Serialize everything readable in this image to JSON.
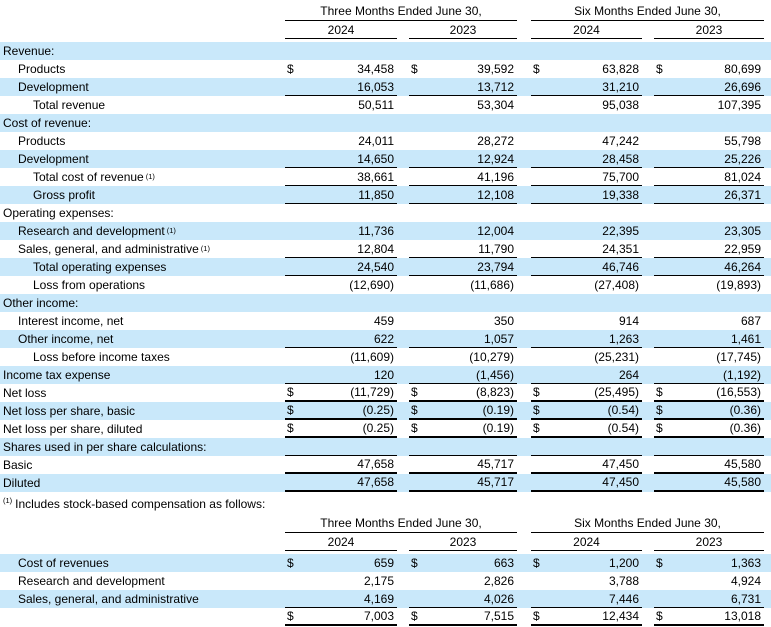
{
  "colors": {
    "row_shade": "#c9e8fa",
    "rule": "#000000",
    "text": "#000000",
    "background": "#ffffff"
  },
  "footnote": {
    "marker": "(1)",
    "text": "Includes stock-based compensation as follows:"
  },
  "tables": [
    {
      "name": "income-statement",
      "group_headers": [
        "Three Months Ended June 30,",
        "Six Months Ended June 30,"
      ],
      "year_headers": [
        "2024",
        "2023",
        "2024",
        "2023"
      ],
      "rows": [
        {
          "label": "Revenue:",
          "sup": "",
          "indent": 0,
          "shaded": true,
          "dollar": false,
          "values": [],
          "underline": "none"
        },
        {
          "label": "Products",
          "sup": "",
          "indent": 1,
          "shaded": false,
          "dollar": true,
          "values": [
            "34,458",
            "39,592",
            "63,828",
            "80,699"
          ],
          "underline": "none"
        },
        {
          "label": "Development",
          "sup": "",
          "indent": 1,
          "shaded": true,
          "dollar": false,
          "values": [
            "16,053",
            "13,712",
            "31,210",
            "26,696"
          ],
          "underline": "thin"
        },
        {
          "label": "Total revenue",
          "sup": "",
          "indent": 2,
          "shaded": false,
          "dollar": false,
          "values": [
            "50,511",
            "53,304",
            "95,038",
            "107,395"
          ],
          "underline": "none"
        },
        {
          "label": "Cost of revenue:",
          "sup": "",
          "indent": 0,
          "shaded": true,
          "dollar": false,
          "values": [],
          "underline": "none"
        },
        {
          "label": "Products",
          "sup": "",
          "indent": 1,
          "shaded": false,
          "dollar": false,
          "values": [
            "24,011",
            "28,272",
            "47,242",
            "55,798"
          ],
          "underline": "none"
        },
        {
          "label": "Development",
          "sup": "",
          "indent": 1,
          "shaded": true,
          "dollar": false,
          "values": [
            "14,650",
            "12,924",
            "28,458",
            "25,226"
          ],
          "underline": "thin"
        },
        {
          "label": "Total cost of revenue",
          "sup": "(1)",
          "indent": 2,
          "shaded": false,
          "dollar": false,
          "values": [
            "38,661",
            "41,196",
            "75,700",
            "81,024"
          ],
          "underline": "thin"
        },
        {
          "label": "Gross profit",
          "sup": "",
          "indent": 2,
          "shaded": true,
          "dollar": false,
          "values": [
            "11,850",
            "12,108",
            "19,338",
            "26,371"
          ],
          "underline": "thin"
        },
        {
          "label": "Operating expenses:",
          "sup": "",
          "indent": 0,
          "shaded": false,
          "dollar": false,
          "values": [],
          "underline": "none"
        },
        {
          "label": "Research and development",
          "sup": "(1)",
          "indent": 1,
          "shaded": true,
          "dollar": false,
          "values": [
            "11,736",
            "12,004",
            "22,395",
            "23,305"
          ],
          "underline": "none"
        },
        {
          "label": "Sales, general, and administrative",
          "sup": "(1)",
          "indent": 1,
          "shaded": false,
          "dollar": false,
          "values": [
            "12,804",
            "11,790",
            "24,351",
            "22,959"
          ],
          "underline": "thin"
        },
        {
          "label": "Total operating expenses",
          "sup": "",
          "indent": 2,
          "shaded": true,
          "dollar": false,
          "values": [
            "24,540",
            "23,794",
            "46,746",
            "46,264"
          ],
          "underline": "thin"
        },
        {
          "label": "Loss from operations",
          "sup": "",
          "indent": 2,
          "shaded": false,
          "dollar": false,
          "values": [
            "(12,690)",
            "(11,686)",
            "(27,408)",
            "(19,893)"
          ],
          "underline": "none"
        },
        {
          "label": "Other income:",
          "sup": "",
          "indent": 0,
          "shaded": true,
          "dollar": false,
          "values": [],
          "underline": "none"
        },
        {
          "label": "Interest income, net",
          "sup": "",
          "indent": 1,
          "shaded": false,
          "dollar": false,
          "values": [
            "459",
            "350",
            "914",
            "687"
          ],
          "underline": "none"
        },
        {
          "label": "Other income, net",
          "sup": "",
          "indent": 1,
          "shaded": true,
          "dollar": false,
          "values": [
            "622",
            "1,057",
            "1,263",
            "1,461"
          ],
          "underline": "thin"
        },
        {
          "label": "Loss before income taxes",
          "sup": "",
          "indent": 2,
          "shaded": false,
          "dollar": false,
          "values": [
            "(11,609)",
            "(10,279)",
            "(25,231)",
            "(17,745)"
          ],
          "underline": "none"
        },
        {
          "label": "Income tax expense",
          "sup": "",
          "indent": 0,
          "shaded": true,
          "dollar": false,
          "values": [
            "120",
            "(1,456)",
            "264",
            "(1,192)"
          ],
          "underline": "thin"
        },
        {
          "label": "Net loss",
          "sup": "",
          "indent": 0,
          "shaded": false,
          "dollar": true,
          "values": [
            "(11,729)",
            "(8,823)",
            "(25,495)",
            "(16,553)"
          ],
          "underline": "thick"
        },
        {
          "label": "Net loss per share, basic",
          "sup": "",
          "indent": 0,
          "shaded": true,
          "dollar": true,
          "values": [
            "(0.25)",
            "(0.19)",
            "(0.54)",
            "(0.36)"
          ],
          "underline": "thick"
        },
        {
          "label": "Net loss per share, diluted",
          "sup": "",
          "indent": 0,
          "shaded": false,
          "dollar": true,
          "values": [
            "(0.25)",
            "(0.19)",
            "(0.54)",
            "(0.36)"
          ],
          "underline": "thick"
        },
        {
          "label": "Shares used in per share calculations:",
          "sup": "",
          "indent": 0,
          "shaded": true,
          "dollar": false,
          "values": [
            "",
            "",
            "",
            ""
          ],
          "underline": "thin"
        },
        {
          "label": "Basic",
          "sup": "",
          "indent": 0,
          "shaded": false,
          "dollar": false,
          "values": [
            "47,658",
            "45,717",
            "47,450",
            "45,580"
          ],
          "underline": "thick"
        },
        {
          "label": "Diluted",
          "sup": "",
          "indent": 0,
          "shaded": true,
          "dollar": false,
          "values": [
            "47,658",
            "45,717",
            "47,450",
            "45,580"
          ],
          "underline": "thick"
        }
      ]
    },
    {
      "name": "stock-based-compensation",
      "group_headers": [
        "Three Months Ended June 30,",
        "Six Months Ended June 30,"
      ],
      "year_headers": [
        "2024",
        "2023",
        "2024",
        "2023"
      ],
      "rows": [
        {
          "label": "Cost of revenues",
          "sup": "",
          "indent": 1,
          "shaded": true,
          "dollar": true,
          "values": [
            "659",
            "663",
            "1,200",
            "1,363"
          ],
          "underline": "none"
        },
        {
          "label": "Research and development",
          "sup": "",
          "indent": 1,
          "shaded": false,
          "dollar": false,
          "values": [
            "2,175",
            "2,826",
            "3,788",
            "4,924"
          ],
          "underline": "none"
        },
        {
          "label": "Sales, general, and administrative",
          "sup": "",
          "indent": 1,
          "shaded": true,
          "dollar": false,
          "values": [
            "4,169",
            "4,026",
            "7,446",
            "6,731"
          ],
          "underline": "thin"
        },
        {
          "label": "",
          "sup": "",
          "indent": 0,
          "shaded": false,
          "dollar": true,
          "values": [
            "7,003",
            "7,515",
            "12,434",
            "13,018"
          ],
          "underline": "thick"
        }
      ]
    }
  ]
}
